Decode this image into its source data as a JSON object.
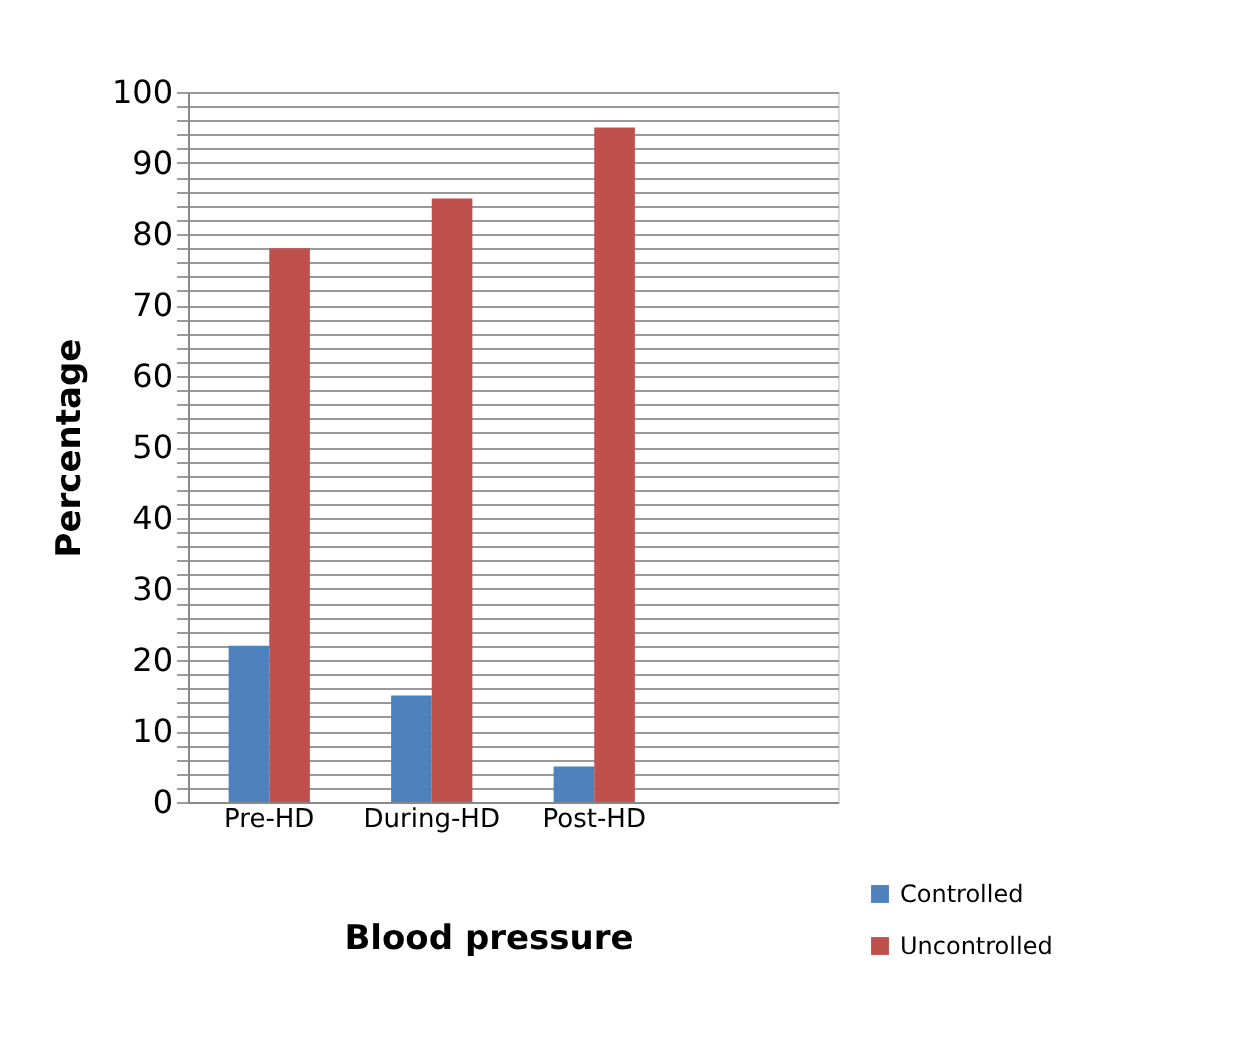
{
  "chart_data": {
    "type": "bar",
    "xlabel": "Blood pressure",
    "ylabel": "Percentage",
    "categories": [
      "Pre-HD",
      "During-HD",
      "Post-HD",
      null
    ],
    "series": [
      {
        "name": "Controlled",
        "color": "#4f81bd",
        "values": [
          22,
          15,
          5,
          null
        ]
      },
      {
        "name": "Uncontrolled",
        "color": "#c0504d",
        "values": [
          78,
          85,
          95,
          null
        ]
      }
    ],
    "ylim": [
      0,
      100
    ],
    "yticks": [
      0,
      {
        "value": 2,
        "label": null
      },
      {
        "value": 4,
        "label": null
      },
      {
        "value": 6,
        "label": null
      },
      {
        "value": 8,
        "label": null
      },
      10,
      {
        "value": 12,
        "label": null
      },
      {
        "value": 14,
        "label": null
      },
      {
        "value": 16,
        "label": null
      },
      {
        "value": 18,
        "label": null
      },
      20,
      {
        "value": 22,
        "label": null
      },
      {
        "value": 24,
        "label": null
      },
      {
        "value": 26,
        "label": null
      },
      {
        "value": 28,
        "label": null
      },
      30,
      {
        "value": 32,
        "label": null
      },
      {
        "value": 34,
        "label": null
      },
      {
        "value": 36,
        "label": null
      },
      {
        "value": 38,
        "label": null
      },
      40,
      {
        "value": 42,
        "label": null
      },
      {
        "value": 44,
        "label": null
      },
      {
        "value": 46,
        "label": null
      },
      {
        "value": 48,
        "label": null
      },
      50,
      {
        "value": 52,
        "label": null
      },
      {
        "value": 54,
        "label": null
      },
      {
        "value": 56,
        "label": null
      },
      {
        "value": 58,
        "label": null
      },
      60,
      {
        "value": 62,
        "label": null
      },
      {
        "value": 64,
        "label": null
      },
      {
        "value": 66,
        "label": null
      },
      {
        "value": 68,
        "label": null
      },
      70,
      {
        "value": 72,
        "label": null
      },
      {
        "value": 74,
        "label": null
      },
      {
        "value": 76,
        "label": null
      },
      {
        "value": 78,
        "label": null
      },
      80,
      {
        "value": 82,
        "label": null
      },
      {
        "value": 84,
        "label": null
      },
      {
        "value": 86,
        "label": null
      },
      {
        "value": 88,
        "label": null
      },
      90,
      {
        "value": 92,
        "label": null
      },
      {
        "value": 94,
        "label": null
      },
      {
        "value": 96,
        "label": null
      },
      {
        "value": 98,
        "label": null
      },
      100
    ],
    "grid": "y",
    "legend": "bottom right"
  }
}
